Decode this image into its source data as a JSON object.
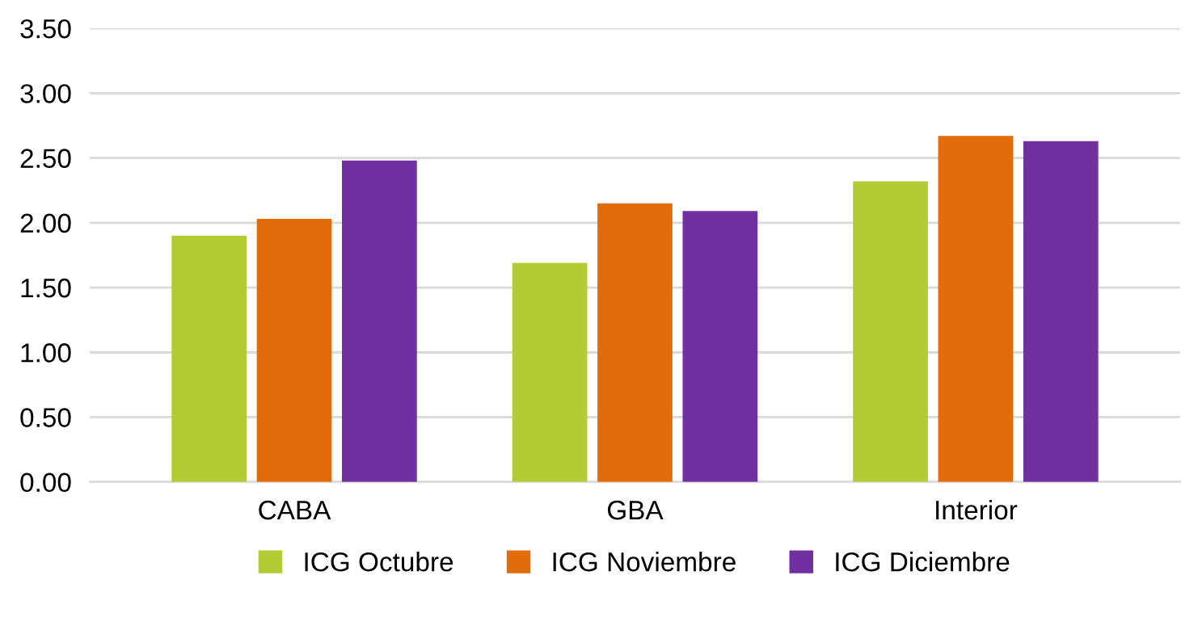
{
  "chart_data": {
    "type": "bar",
    "categories": [
      "CABA",
      "GBA",
      "Interior"
    ],
    "series": [
      {
        "name": "ICG Octubre",
        "color": "#b3cb34",
        "values": [
          1.9,
          1.69,
          2.32
        ]
      },
      {
        "name": "ICG Noviembre",
        "color": "#e36c0a",
        "values": [
          2.03,
          2.15,
          2.67
        ]
      },
      {
        "name": "ICG Diciembre",
        "color": "#7030a0",
        "values": [
          2.48,
          2.09,
          2.63
        ]
      }
    ],
    "ylim": [
      0,
      3.5
    ],
    "yticks": [
      {
        "value": 0,
        "label": "0.00"
      },
      {
        "value": 0.5,
        "label": "0.50"
      },
      {
        "value": 1,
        "label": "1.00"
      },
      {
        "value": 1.5,
        "label": "1.50"
      },
      {
        "value": 2,
        "label": "2.00"
      },
      {
        "value": 2.5,
        "label": "2.50"
      },
      {
        "value": 3,
        "label": "3.00"
      },
      {
        "value": 3.5,
        "label": "3.50"
      }
    ],
    "grid": "y",
    "legend": "bottom"
  }
}
